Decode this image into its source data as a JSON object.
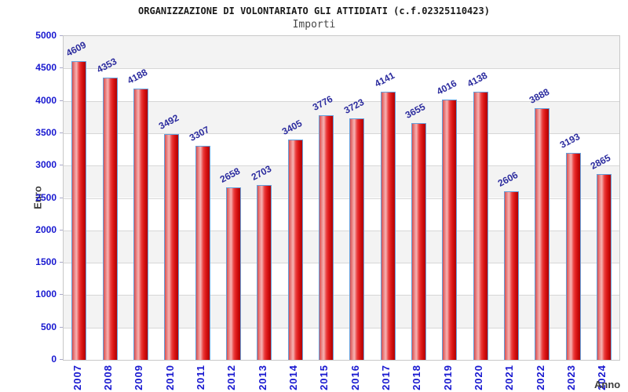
{
  "title": "ORGANIZZAZIONE DI VOLONTARIATO GLI ATTIDIATI (c.f.02325110423)",
  "subtitle": "Importi",
  "chart_data": {
    "type": "bar",
    "title": "ORGANIZZAZIONE DI VOLONTARIATO GLI ATTIDIATI (c.f.02325110423)",
    "subtitle": "Importi",
    "xlabel": "Anno",
    "ylabel": "Euro",
    "categories": [
      "2007",
      "2008",
      "2009",
      "2010",
      "2011",
      "2012",
      "2013",
      "2014",
      "2015",
      "2016",
      "2017",
      "2018",
      "2019",
      "2020",
      "2021",
      "2022",
      "2023",
      "2024"
    ],
    "values": [
      4609,
      4353,
      4188,
      3492,
      3307,
      2658,
      2703,
      3405,
      3776,
      3723,
      4141,
      3655,
      4016,
      4138,
      2606,
      3888,
      3193,
      2865
    ],
    "ylim": [
      0,
      5000
    ],
    "ytick_step": 500,
    "ytick_values": [
      0,
      500,
      1000,
      1500,
      2000,
      2500,
      3000,
      3500,
      4000,
      4500,
      5000
    ],
    "grid": true,
    "band_colors": [
      "#f3f3f3",
      "#ffffff"
    ],
    "legend": "none",
    "colors": {
      "bar_fill": "#e02222",
      "bar_highlight": "#f6b3b3",
      "bar_border": "#64a0dc",
      "value_label": "#2b2b9e",
      "axis_tick_label": "#1818d0",
      "axis_title": "#3c3c3c",
      "gridline": "#d7d7d7"
    }
  }
}
